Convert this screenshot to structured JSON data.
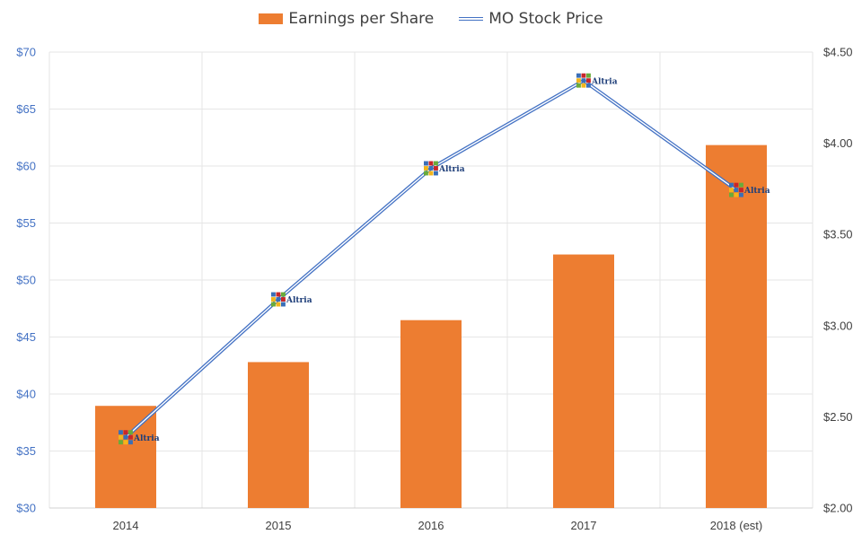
{
  "chart_data": {
    "type": "bar+line",
    "categories": [
      "2014",
      "2015",
      "2016",
      "2017",
      "2018 (est)"
    ],
    "series": [
      {
        "name": "Earnings per Share",
        "type": "bar",
        "axis": "right",
        "color": "#ed7d31",
        "values": [
          2.56,
          2.8,
          3.03,
          3.39,
          3.99
        ]
      },
      {
        "name": "MO Stock Price",
        "type": "line",
        "axis": "left",
        "color": "#4472c4",
        "marker": "Altria",
        "values": [
          36.2,
          48.3,
          59.8,
          67.5,
          57.9
        ]
      }
    ],
    "y_left": {
      "min": 30,
      "max": 70,
      "ticks": [
        "$30",
        "$35",
        "$40",
        "$45",
        "$50",
        "$55",
        "$60",
        "$65",
        "$70"
      ]
    },
    "y_right": {
      "min": 2.0,
      "max": 4.5,
      "ticks": [
        "$2.00",
        "$2.50",
        "$3.00",
        "$3.50",
        "$4.00",
        "$4.50"
      ]
    },
    "grid": true,
    "legend": "top-center"
  },
  "legend": {
    "bar_label": "Earnings per Share",
    "line_label": "MO Stock Price"
  }
}
